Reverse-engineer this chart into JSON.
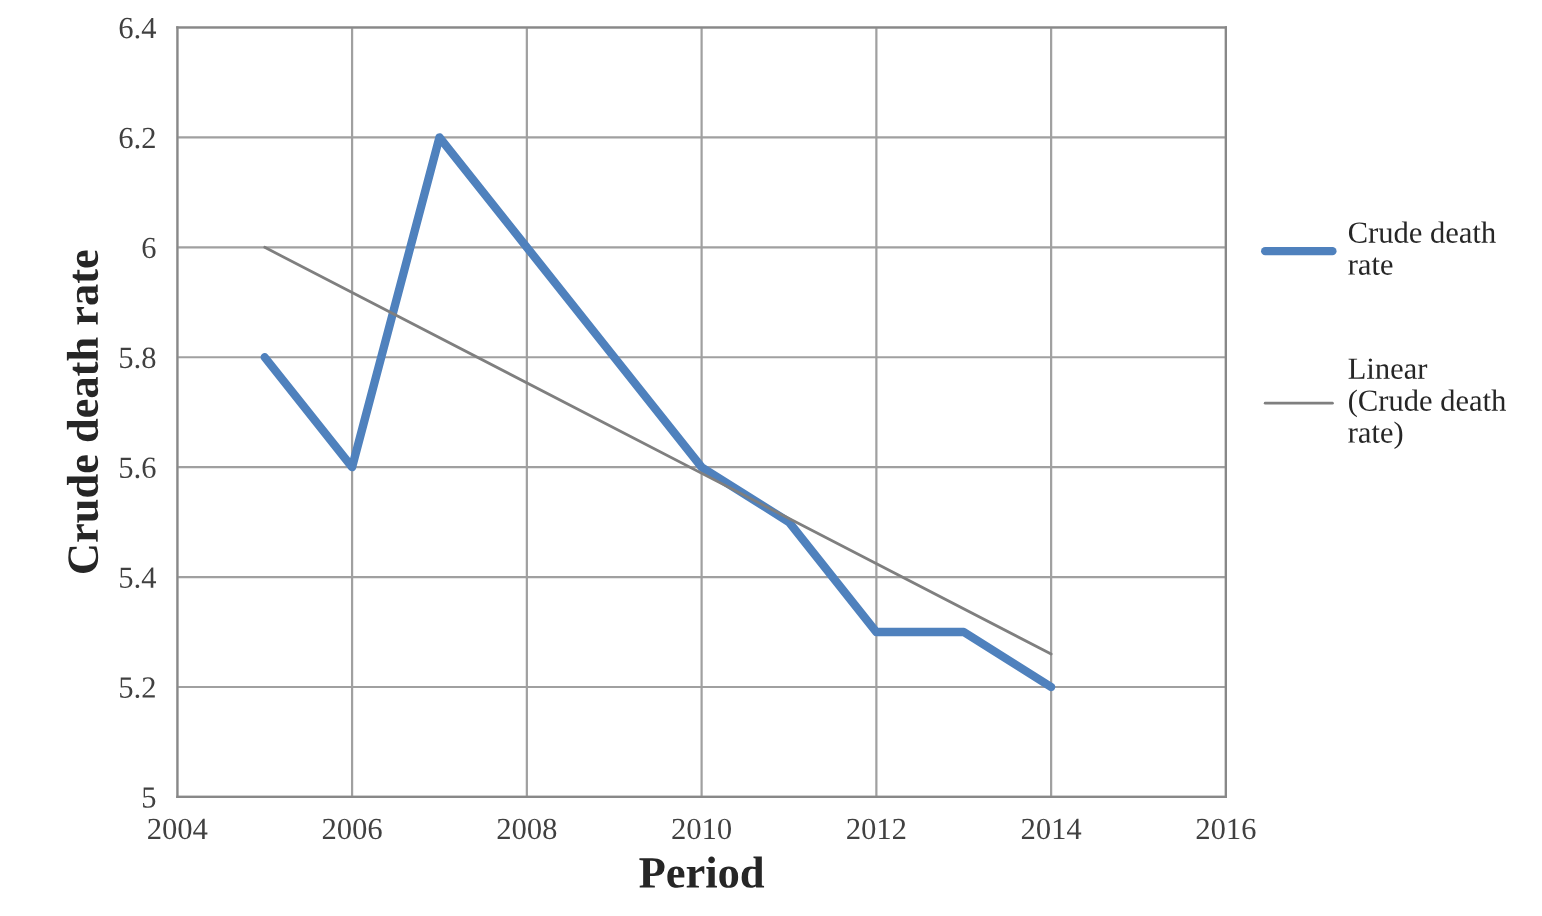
{
  "chart_data": {
    "type": "line",
    "xlabel": "Period",
    "ylabel": "Crude death rate",
    "x": [
      2005,
      2006,
      2007,
      2008,
      2009,
      2010,
      2011,
      2012,
      2013,
      2014
    ],
    "series": [
      {
        "name": "Crude death rate",
        "color": "#4f81bd",
        "values": [
          5.8,
          5.6,
          6.2,
          6.0,
          5.8,
          5.6,
          5.5,
          5.3,
          5.3,
          5.2
        ]
      },
      {
        "name": "Linear (Crude death rate)",
        "color": "#7f7f7f",
        "x": [
          2005,
          2014
        ],
        "values": [
          6.0,
          5.26
        ]
      }
    ],
    "xlim": [
      2004,
      2016
    ],
    "xticks": [
      2004,
      2006,
      2008,
      2010,
      2012,
      2014,
      2016
    ],
    "ylim": [
      5,
      6.4
    ],
    "yticks": [
      {
        "value": 5,
        "label": "5"
      },
      5.2,
      5.4,
      5.6,
      5.8,
      {
        "value": 6,
        "label": "6"
      },
      6.2,
      6.4
    ],
    "grid": true,
    "legend": "right",
    "marker": "none",
    "line_style": "solid"
  }
}
